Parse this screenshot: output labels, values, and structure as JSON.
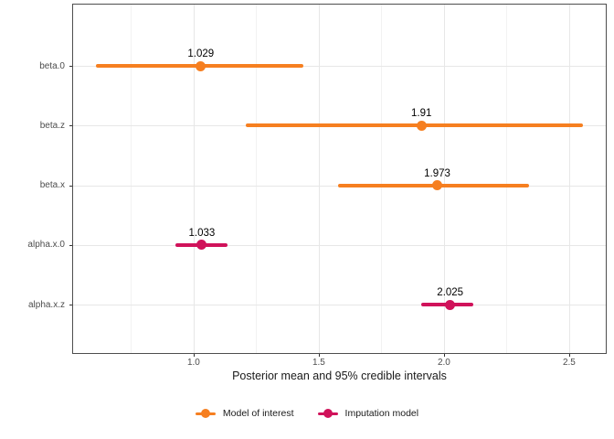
{
  "chart_data": {
    "type": "pointrange",
    "title": "",
    "xlabel": "Posterior mean and 95% credible intervals",
    "ylabel": "",
    "categories": [
      "beta.0",
      "beta.z",
      "beta.x",
      "alpha.x.0",
      "alpha.x.z"
    ],
    "points": [
      {
        "category": "beta.0",
        "mean": 1.029,
        "label": "1.029",
        "ci_low": 0.609,
        "ci_high": 1.438,
        "series": "Model of interest"
      },
      {
        "category": "beta.z",
        "mean": 1.91,
        "label": "1.91",
        "ci_low": 1.208,
        "ci_high": 2.555,
        "series": "Model of interest"
      },
      {
        "category": "beta.x",
        "mean": 1.973,
        "label": "1.973",
        "ci_low": 1.577,
        "ci_high": 2.339,
        "series": "Model of interest"
      },
      {
        "category": "alpha.x.0",
        "mean": 1.033,
        "label": "1.033",
        "ci_low": 0.927,
        "ci_high": 1.135,
        "series": "Imputation model"
      },
      {
        "category": "alpha.x.z",
        "mean": 2.025,
        "label": "2.025",
        "ci_low": 1.909,
        "ci_high": 2.117,
        "series": "Imputation model"
      }
    ],
    "x_axis": {
      "min": 0.515,
      "max": 2.65,
      "major_ticks": [
        1.0,
        1.5,
        2.0,
        2.5
      ],
      "tick_labels": [
        "1.0",
        "1.5",
        "2.0",
        "2.5"
      ],
      "minor_ticks": [
        0.75,
        1.25,
        1.75,
        2.25
      ]
    },
    "grid": true,
    "legend": {
      "position": "bottom",
      "items": [
        {
          "label": "Model of interest",
          "color": "#F67F20"
        },
        {
          "label": "Imputation model",
          "color": "#D0125A"
        }
      ]
    },
    "colors": {
      "Model of interest": "#F67F20",
      "Imputation model": "#D0125A"
    },
    "style": {
      "panel_border": "#4d4d4d",
      "major_grid": "#e7e7e7",
      "minor_grid": "#f2f2f2",
      "axis_text": "#4d4d4d",
      "tick_mark": "#333333"
    }
  }
}
